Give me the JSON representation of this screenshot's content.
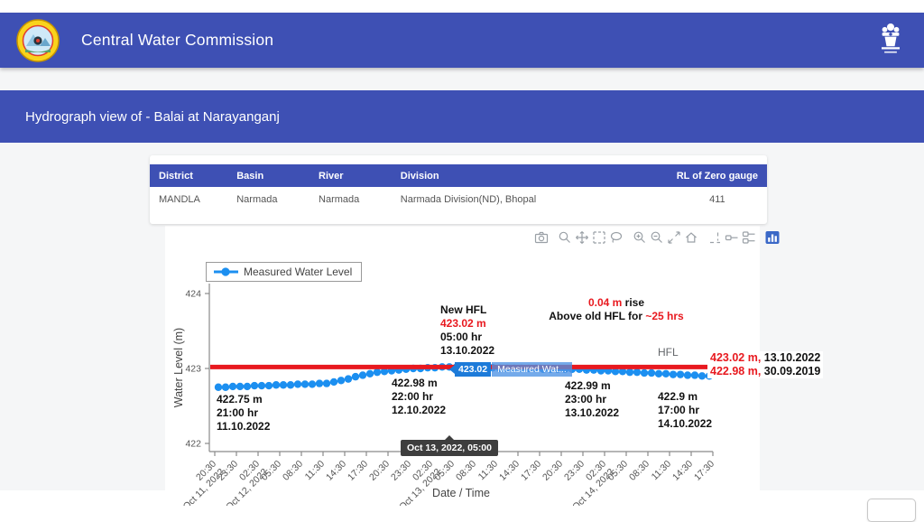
{
  "header": {
    "title": "Central Water Commission"
  },
  "banner": {
    "title": "Hydrograph view of - Balai at Narayanganj"
  },
  "station_table": {
    "headers": [
      "District",
      "Basin",
      "River",
      "Division",
      "RL of Zero gauge"
    ],
    "rows": [
      [
        "MANDLA",
        "Narmada",
        "Narmada",
        "Narmada Division(ND), Bhopal",
        "411"
      ]
    ]
  },
  "modebar": {
    "buttons": [
      "download-plot-as-png",
      "zoom",
      "pan",
      "box-select",
      "lasso-select",
      "zoom-in",
      "zoom-out",
      "autoscale",
      "reset-axes",
      "toggle-spike-lines",
      "show-closest-data-on-hover",
      "compare-data-on-hover",
      "plotly-logo"
    ]
  },
  "chart_data": {
    "type": "line",
    "title": "",
    "xlabel": "Date / Time",
    "ylabel": "Water Level (m)",
    "ylim": [
      421.9,
      424.13
    ],
    "yticks": [
      422,
      423,
      424
    ],
    "grid": false,
    "legend": {
      "position": "top-left",
      "entries": [
        "Measured Water Level"
      ]
    },
    "xticks": [
      {
        "time": "20:30",
        "date": "Oct 11, 2022"
      },
      {
        "time": "23:30"
      },
      {
        "time": "02:30",
        "date": "Oct 12, 2022"
      },
      {
        "time": "05:30"
      },
      {
        "time": "08:30"
      },
      {
        "time": "11:30"
      },
      {
        "time": "14:30"
      },
      {
        "time": "17:30"
      },
      {
        "time": "20:30"
      },
      {
        "time": "23:30"
      },
      {
        "time": "02:30",
        "date": "Oct 13, 2022"
      },
      {
        "time": "05:30"
      },
      {
        "time": "08:30"
      },
      {
        "time": "11:30"
      },
      {
        "time": "14:30"
      },
      {
        "time": "17:30"
      },
      {
        "time": "20:30"
      },
      {
        "time": "23:30"
      },
      {
        "time": "02:30",
        "date": "Oct 14, 2022"
      },
      {
        "time": "05:30"
      },
      {
        "time": "08:30"
      },
      {
        "time": "11:30"
      },
      {
        "time": "14:30"
      },
      {
        "time": "17:30"
      }
    ],
    "series": [
      {
        "name": "Measured Water Level",
        "color": "#1c8ff0",
        "start": "2022-10-11 21:00",
        "interval_hours": 1,
        "values": [
          422.75,
          422.75,
          422.76,
          422.76,
          422.76,
          422.77,
          422.77,
          422.77,
          422.78,
          422.78,
          422.78,
          422.79,
          422.79,
          422.79,
          422.8,
          422.8,
          422.82,
          422.84,
          422.86,
          422.89,
          422.91,
          422.93,
          422.95,
          422.96,
          422.97,
          422.98,
          422.99,
          423.0,
          423.0,
          423.01,
          423.01,
          423.02,
          423.02,
          423.02,
          423.02,
          423.02,
          423.01,
          423.01,
          423.01,
          423.0,
          423.0,
          423.0,
          423.0,
          423.0,
          423.0,
          422.99,
          422.99,
          422.99,
          422.99,
          422.99,
          422.99,
          422.98,
          422.98,
          422.97,
          422.97,
          422.96,
          422.96,
          422.95,
          422.95,
          422.94,
          422.94,
          422.93,
          422.93,
          422.92,
          422.92,
          422.91,
          422.91,
          422.9,
          422.9
        ]
      }
    ],
    "hfl_line": {
      "value": 423.02,
      "color": "#e8191f",
      "label": "HFL"
    },
    "hover_label": {
      "value": "423.02",
      "series": "Measured Wat...",
      "point_time": "2022-10-13 05:00"
    },
    "x_tooltip": "Oct 13, 2022, 05:00",
    "annotations": [
      {
        "id": "first-point",
        "lines": [
          [
            {
              "t": "422.75 m"
            }
          ],
          [
            {
              "t": "21:00 hr"
            }
          ],
          [
            {
              "t": "11.10.2022"
            }
          ]
        ]
      },
      {
        "id": "point-12oct",
        "lines": [
          [
            {
              "t": "422.98 m"
            }
          ],
          [
            {
              "t": "22:00 hr"
            }
          ],
          [
            {
              "t": "12.10.2022"
            }
          ]
        ]
      },
      {
        "id": "new-hfl",
        "lines": [
          [
            {
              "t": "New HFL"
            }
          ],
          [
            {
              "t": "423.02 m",
              "red": true
            }
          ],
          [
            {
              "t": "05:00 hr"
            }
          ],
          [
            {
              "t": "13.10.2022"
            }
          ]
        ]
      },
      {
        "id": "rise-note",
        "lines": [
          [
            {
              "t": "0.04 m",
              "red": true
            },
            {
              "t": " rise"
            }
          ],
          [
            {
              "t": "Above old HFL for "
            },
            {
              "t": "~25 hrs",
              "red": true
            }
          ]
        ]
      },
      {
        "id": "point-13oct",
        "lines": [
          [
            {
              "t": "422.99 m"
            }
          ],
          [
            {
              "t": "23:00 hr"
            }
          ],
          [
            {
              "t": "13.10.2022"
            }
          ]
        ]
      },
      {
        "id": "last-point",
        "lines": [
          [
            {
              "t": "422.9 m"
            }
          ],
          [
            {
              "t": "17:00 hr"
            }
          ],
          [
            {
              "t": "14.10.2022"
            }
          ]
        ]
      }
    ],
    "side_labels": [
      [
        {
          "t": "423.02 m,",
          "red": true
        },
        {
          "t": " 13.10.2022"
        }
      ],
      [
        {
          "t": "422.98 m,",
          "red": true
        },
        {
          "t": " 30.09.2019"
        }
      ]
    ],
    "colors": {
      "accent": "#3e50b4",
      "red": "#e8191f",
      "marker": "#1c8ff0"
    }
  }
}
